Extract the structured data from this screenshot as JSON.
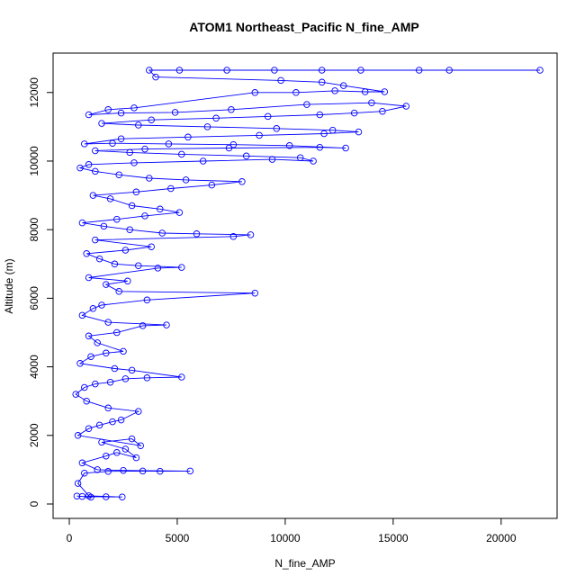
{
  "chart_data": {
    "type": "scatter",
    "title": "ATOM1 Northeast_Pacific N_fine_AMP",
    "xlabel": "N_fine_AMP",
    "ylabel": "Altitude (m)",
    "xlim": [
      0,
      22500
    ],
    "ylim": [
      0,
      12800
    ],
    "xticks": [
      0,
      5000,
      10000,
      15000,
      20000
    ],
    "yticks": [
      0,
      2000,
      4000,
      6000,
      8000,
      10000,
      12000
    ],
    "grid": false,
    "legend": "none",
    "series": [
      {
        "color": "#0000ff",
        "marker": "open-circle",
        "connected": true,
        "points": [
          [
            1000,
            200
          ],
          [
            350,
            230
          ],
          [
            600,
            220
          ],
          [
            1700,
            210
          ],
          [
            2450,
            205
          ],
          [
            900,
            240
          ],
          [
            400,
            600
          ],
          [
            700,
            900
          ],
          [
            1800,
            950
          ],
          [
            3400,
            960
          ],
          [
            4200,
            955
          ],
          [
            5600,
            960
          ],
          [
            2500,
            980
          ],
          [
            1300,
            1000
          ],
          [
            600,
            1200
          ],
          [
            1700,
            1400
          ],
          [
            2200,
            1500
          ],
          [
            3100,
            1350
          ],
          [
            2600,
            1600
          ],
          [
            1500,
            1800
          ],
          [
            2900,
            1900
          ],
          [
            3300,
            1700
          ],
          [
            400,
            2000
          ],
          [
            900,
            2200
          ],
          [
            1400,
            2300
          ],
          [
            2000,
            2400
          ],
          [
            2400,
            2450
          ],
          [
            3200,
            2700
          ],
          [
            1800,
            2800
          ],
          [
            800,
            3000
          ],
          [
            300,
            3200
          ],
          [
            700,
            3400
          ],
          [
            1200,
            3500
          ],
          [
            1900,
            3550
          ],
          [
            2600,
            3650
          ],
          [
            3600,
            3680
          ],
          [
            5200,
            3700
          ],
          [
            2900,
            3900
          ],
          [
            2100,
            3950
          ],
          [
            500,
            4100
          ],
          [
            1000,
            4300
          ],
          [
            1700,
            4400
          ],
          [
            2500,
            4450
          ],
          [
            1300,
            4700
          ],
          [
            900,
            4900
          ],
          [
            2200,
            5000
          ],
          [
            3400,
            5200
          ],
          [
            4500,
            5220
          ],
          [
            1800,
            5300
          ],
          [
            600,
            5500
          ],
          [
            1100,
            5700
          ],
          [
            1500,
            5800
          ],
          [
            3600,
            5950
          ],
          [
            8600,
            6150
          ],
          [
            2300,
            6200
          ],
          [
            1700,
            6400
          ],
          [
            2700,
            6500
          ],
          [
            900,
            6600
          ],
          [
            4100,
            6880
          ],
          [
            5200,
            6900
          ],
          [
            3200,
            6950
          ],
          [
            2100,
            7000
          ],
          [
            1400,
            7150
          ],
          [
            800,
            7300
          ],
          [
            2600,
            7400
          ],
          [
            3800,
            7500
          ],
          [
            1200,
            7700
          ],
          [
            7600,
            7800
          ],
          [
            8400,
            7850
          ],
          [
            5900,
            7880
          ],
          [
            4300,
            7900
          ],
          [
            2800,
            8000
          ],
          [
            1600,
            8100
          ],
          [
            600,
            8200
          ],
          [
            2200,
            8300
          ],
          [
            3500,
            8400
          ],
          [
            5100,
            8500
          ],
          [
            4200,
            8600
          ],
          [
            2900,
            8700
          ],
          [
            1900,
            8900
          ],
          [
            1100,
            9000
          ],
          [
            3100,
            9100
          ],
          [
            4700,
            9200
          ],
          [
            6600,
            9300
          ],
          [
            8000,
            9400
          ],
          [
            5400,
            9450
          ],
          [
            3700,
            9500
          ],
          [
            2300,
            9600
          ],
          [
            1200,
            9700
          ],
          [
            500,
            9800
          ],
          [
            900,
            9900
          ],
          [
            3000,
            9950
          ],
          [
            6200,
            10000
          ],
          [
            9400,
            10050
          ],
          [
            11300,
            10000
          ],
          [
            10700,
            10100
          ],
          [
            8200,
            10150
          ],
          [
            5200,
            10200
          ],
          [
            2800,
            10250
          ],
          [
            1200,
            10300
          ],
          [
            3500,
            10350
          ],
          [
            7400,
            10380
          ],
          [
            11600,
            10400
          ],
          [
            12800,
            10380
          ],
          [
            10200,
            10450
          ],
          [
            7600,
            10480
          ],
          [
            4600,
            10500
          ],
          [
            2000,
            10520
          ],
          [
            700,
            10500
          ],
          [
            2400,
            10650
          ],
          [
            5500,
            10700
          ],
          [
            8800,
            10750
          ],
          [
            11800,
            10800
          ],
          [
            13400,
            10850
          ],
          [
            12200,
            10900
          ],
          [
            9600,
            10950
          ],
          [
            6400,
            11000
          ],
          [
            3200,
            11050
          ],
          [
            1500,
            11100
          ],
          [
            3800,
            11200
          ],
          [
            6800,
            11250
          ],
          [
            9200,
            11300
          ],
          [
            11600,
            11350
          ],
          [
            13200,
            11400
          ],
          [
            14500,
            11450
          ],
          [
            15600,
            11600
          ],
          [
            14000,
            11700
          ],
          [
            11000,
            11650
          ],
          [
            7500,
            11500
          ],
          [
            4900,
            11420
          ],
          [
            2400,
            11400
          ],
          [
            900,
            11350
          ],
          [
            1800,
            11500
          ],
          [
            3000,
            11550
          ],
          [
            8600,
            12000
          ],
          [
            10500,
            12000
          ],
          [
            12300,
            12050
          ],
          [
            13700,
            12020
          ],
          [
            14600,
            12020
          ],
          [
            12700,
            12200
          ],
          [
            11700,
            12300
          ],
          [
            9800,
            12350
          ],
          [
            4000,
            12450
          ],
          [
            3700,
            12650
          ],
          [
            5100,
            12650
          ],
          [
            7300,
            12650
          ],
          [
            9500,
            12650
          ],
          [
            11700,
            12650
          ],
          [
            13500,
            12650
          ],
          [
            16200,
            12650
          ],
          [
            17600,
            12650
          ],
          [
            21800,
            12650
          ]
        ]
      }
    ]
  }
}
